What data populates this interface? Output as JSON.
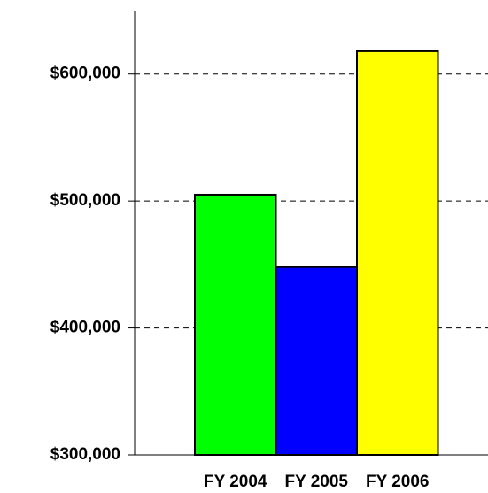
{
  "chart_data": {
    "type": "bar",
    "categories": [
      "FY 2004",
      "FY 2005",
      "FY 2006"
    ],
    "values": [
      505000,
      448000,
      618000
    ],
    "colors": [
      "#00ff00",
      "#0000ff",
      "#ffff00"
    ],
    "ylim": [
      300000,
      650000
    ],
    "yticks": [
      {
        "value": 300000,
        "label": "$300,000"
      },
      {
        "value": 400000,
        "label": "$400,000"
      },
      {
        "value": 500000,
        "label": "$500,000"
      },
      {
        "value": 600000,
        "label": "$600,000"
      }
    ],
    "grid": true
  }
}
